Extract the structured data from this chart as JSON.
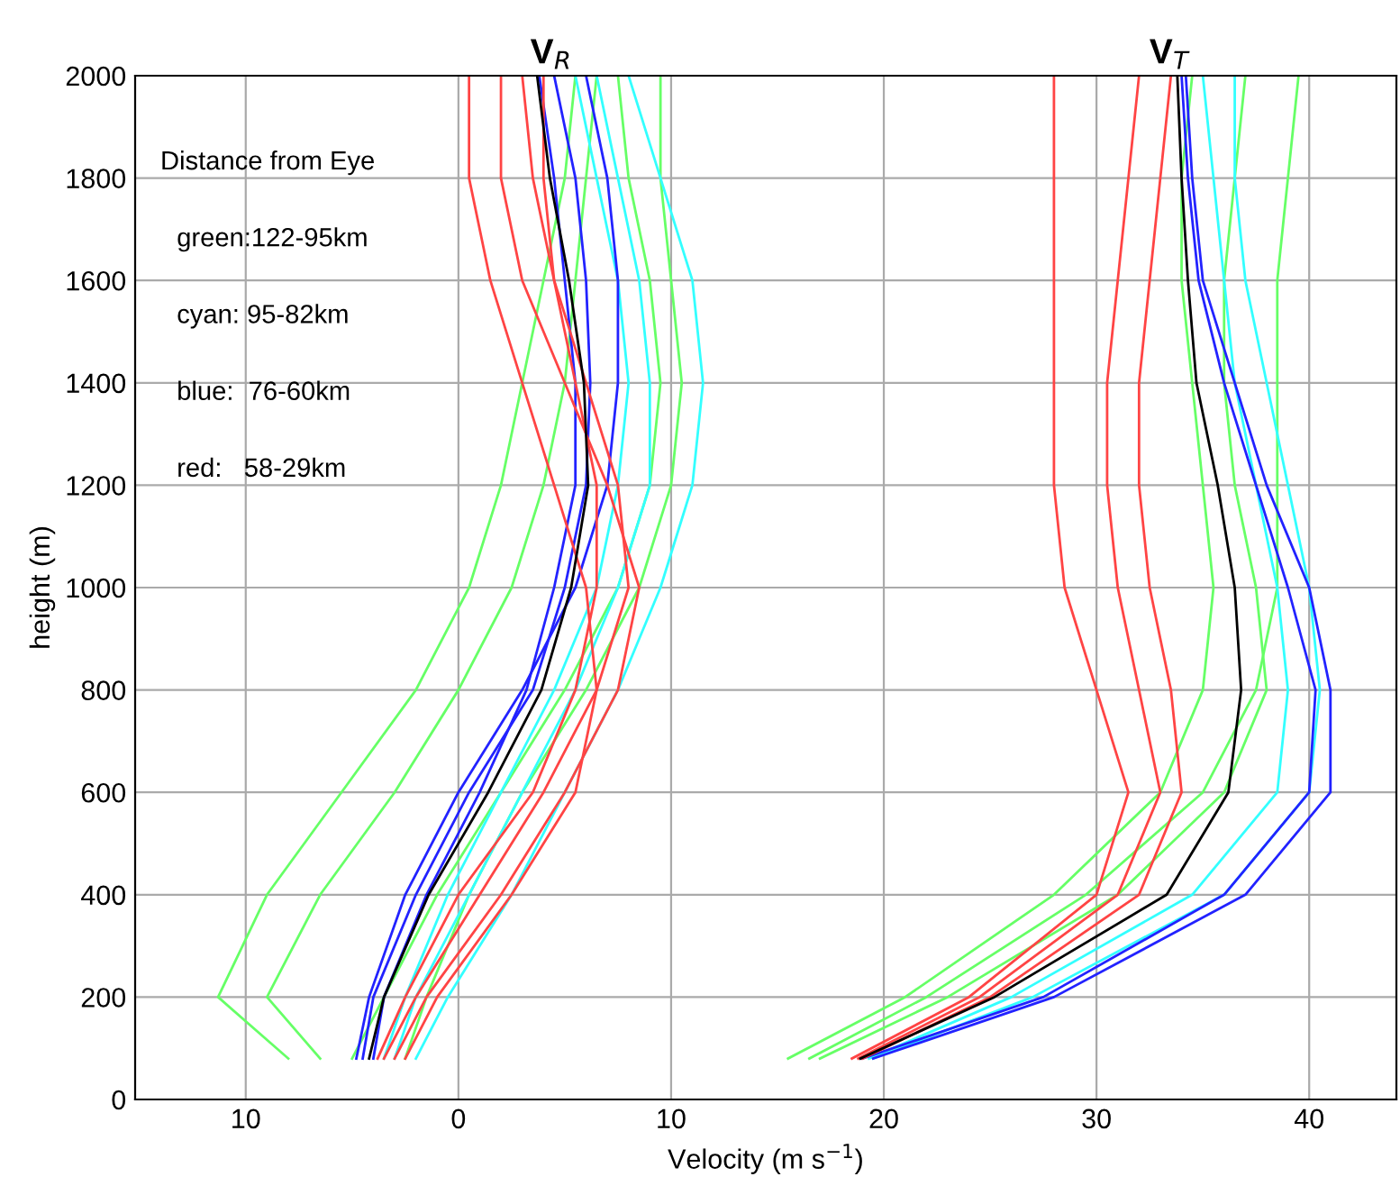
{
  "chart_data": {
    "type": "line",
    "xlabel": "Velocity (m s$^{−1}$)",
    "ylabel": "height (m)",
    "annotations": [
      "V$_{R}$",
      "V$_{T}$",
      "Distance from Eye",
      "green:122-95km",
      "cyan: 95-82km",
      "blue:  76-60km",
      "red:   58-29km"
    ],
    "xlim": [
      -15.2,
      44.1
    ],
    "ylim": [
      0,
      2000
    ],
    "xticks": [
      {
        "value": -10,
        "label": "10"
      },
      0,
      10,
      20,
      30,
      40
    ],
    "yticks": [
      0,
      200,
      400,
      600,
      800,
      1000,
      1200,
      1400,
      1600,
      1800,
      2000
    ],
    "grid": true,
    "line_style": "solid",
    "marker": "none",
    "series": [
      {
        "color": "#66ff66",
        "x": [
          -8.0,
          -11.3,
          -9.0,
          -5.5,
          -2.0,
          0.5,
          2.0,
          3.0,
          4.0,
          5.0,
          5.5
        ],
        "values": [
          80,
          200,
          400,
          600,
          800,
          1000,
          1200,
          1400,
          1600,
          1800,
          2000
        ]
      },
      {
        "color": "#66ff66",
        "x": [
          -6.5,
          -9.0,
          -6.5,
          -3.0,
          0.0,
          2.5,
          4.0,
          5.0,
          5.5,
          6.0,
          6.5
        ],
        "values": [
          80,
          200,
          400,
          600,
          800,
          1000,
          1200,
          1400,
          1600,
          1800,
          2000
        ]
      },
      {
        "color": "#66ff66",
        "x": [
          -5.0,
          -3.5,
          -1.0,
          2.0,
          5.0,
          7.5,
          9.0,
          9.5,
          9.0,
          8.0,
          7.5
        ],
        "values": [
          80,
          200,
          400,
          600,
          800,
          1000,
          1200,
          1400,
          1600,
          1800,
          2000
        ]
      },
      {
        "color": "#66ff66",
        "x": [
          -2.5,
          -1.5,
          0.5,
          3.0,
          6.0,
          8.5,
          10.0,
          10.5,
          10.0,
          9.5,
          9.5
        ],
        "values": [
          80,
          200,
          400,
          600,
          800,
          1000,
          1200,
          1400,
          1600,
          1800,
          2000
        ]
      },
      {
        "color": "#33ffff",
        "x": [
          -2.0,
          -0.5,
          2.5,
          5.0,
          7.5,
          9.5,
          11.0,
          11.5,
          11.0,
          9.5,
          8.0
        ],
        "values": [
          80,
          200,
          400,
          600,
          800,
          1000,
          1200,
          1400,
          1600,
          1800,
          2000
        ]
      },
      {
        "color": "#33ffff",
        "x": [
          -3.0,
          -2.0,
          0.5,
          3.0,
          5.5,
          7.5,
          9.0,
          9.0,
          8.5,
          7.5,
          6.5
        ],
        "values": [
          80,
          200,
          400,
          600,
          800,
          1000,
          1200,
          1400,
          1600,
          1800,
          2000
        ]
      },
      {
        "color": "#33ffff",
        "x": [
          -3.5,
          -2.5,
          -0.5,
          2.0,
          4.5,
          6.5,
          7.5,
          8.0,
          7.5,
          6.5,
          5.5
        ],
        "values": [
          80,
          200,
          400,
          600,
          800,
          1000,
          1200,
          1400,
          1600,
          1800,
          2000
        ]
      },
      {
        "color": "#2222ff",
        "x": [
          -4.8,
          -4.2,
          -2.5,
          0.0,
          3.0,
          5.5,
          7.0,
          7.5,
          7.5,
          7.0,
          6.0
        ],
        "values": [
          80,
          200,
          400,
          600,
          800,
          1000,
          1200,
          1400,
          1600,
          1800,
          2000
        ]
      },
      {
        "color": "#2222ff",
        "x": [
          -4.5,
          -4.0,
          -2.0,
          0.5,
          3.5,
          5.0,
          6.0,
          6.2,
          6.0,
          5.5,
          4.5
        ],
        "values": [
          80,
          200,
          400,
          600,
          800,
          1000,
          1200,
          1400,
          1600,
          1800,
          2000
        ]
      },
      {
        "color": "#2222ff",
        "x": [
          -4.0,
          -3.5,
          -1.5,
          1.0,
          3.2,
          4.5,
          5.5,
          5.5,
          5.0,
          4.5,
          3.8
        ],
        "values": [
          80,
          200,
          400,
          600,
          800,
          1000,
          1200,
          1400,
          1600,
          1800,
          2000
        ]
      },
      {
        "color": "#ff4444",
        "x": [
          -3.5,
          -2.0,
          1.0,
          4.0,
          6.5,
          8.0,
          7.5,
          6.0,
          4.5,
          3.5,
          3.0
        ],
        "values": [
          80,
          200,
          400,
          600,
          800,
          1000,
          1200,
          1400,
          1600,
          1800,
          2000
        ]
      },
      {
        "color": "#ff4444",
        "x": [
          -3.0,
          -1.5,
          2.0,
          5.0,
          7.5,
          8.5,
          7.0,
          5.0,
          3.0,
          2.0,
          2.0
        ],
        "values": [
          80,
          200,
          400,
          600,
          800,
          1000,
          1200,
          1400,
          1600,
          1800,
          2000
        ]
      },
      {
        "color": "#ff4444",
        "x": [
          -2.5,
          -1.0,
          2.5,
          5.5,
          6.5,
          6.0,
          4.5,
          3.0,
          1.5,
          0.5,
          0.5
        ],
        "values": [
          80,
          200,
          400,
          600,
          800,
          1000,
          1200,
          1400,
          1600,
          1800,
          2000
        ]
      },
      {
        "color": "#ff4444",
        "x": [
          -3.8,
          -2.5,
          0.0,
          3.5,
          5.5,
          6.5,
          6.5,
          5.5,
          4.5,
          4.0,
          4.0
        ],
        "values": [
          80,
          200,
          400,
          600,
          800,
          1000,
          1200,
          1400,
          1600,
          1800,
          2000
        ]
      },
      {
        "color": "#000000",
        "x": [
          -4.2,
          -3.5,
          -1.4,
          1.4,
          3.9,
          5.3,
          6.1,
          5.9,
          5.2,
          4.3,
          3.7
        ],
        "values": [
          80,
          200,
          400,
          600,
          800,
          1000,
          1200,
          1400,
          1600,
          1800,
          2000
        ]
      },
      {
        "color": "#66ff66",
        "x": [
          15.5,
          21.0,
          28.0,
          33.0,
          35.0,
          35.5,
          35.0,
          34.5,
          34.0,
          34.0,
          34.5
        ],
        "values": [
          80,
          200,
          400,
          600,
          800,
          1000,
          1200,
          1400,
          1600,
          1800,
          2000
        ]
      },
      {
        "color": "#66ff66",
        "x": [
          16.5,
          22.0,
          29.5,
          35.0,
          37.5,
          38.5,
          38.5,
          38.5,
          38.5,
          39.0,
          39.5
        ],
        "values": [
          80,
          200,
          400,
          600,
          800,
          1000,
          1200,
          1400,
          1600,
          1800,
          2000
        ]
      },
      {
        "color": "#66ff66",
        "x": [
          17.0,
          23.0,
          31.0,
          36.0,
          38.0,
          37.5,
          36.5,
          36.0,
          36.0,
          36.5,
          37.0
        ],
        "values": [
          80,
          200,
          400,
          600,
          800,
          1000,
          1200,
          1400,
          1600,
          1800,
          2000
        ]
      },
      {
        "color": "#33ffff",
        "x": [
          19.5,
          27.0,
          36.0,
          40.0,
          40.5,
          40.0,
          39.0,
          38.0,
          37.0,
          36.5,
          36.5
        ],
        "values": [
          80,
          200,
          400,
          600,
          800,
          1000,
          1200,
          1400,
          1600,
          1800,
          2000
        ]
      },
      {
        "color": "#33ffff",
        "x": [
          19.3,
          26.0,
          34.5,
          38.5,
          39.0,
          38.5,
          37.5,
          36.5,
          36.0,
          35.5,
          35.0
        ],
        "values": [
          80,
          200,
          400,
          600,
          800,
          1000,
          1200,
          1400,
          1600,
          1800,
          2000
        ]
      },
      {
        "color": "#2222ff",
        "x": [
          19.5,
          28.0,
          37.0,
          41.0,
          41.0,
          40.0,
          38.0,
          36.5,
          35.0,
          34.5,
          34.2
        ],
        "values": [
          80,
          200,
          400,
          600,
          800,
          1000,
          1200,
          1400,
          1600,
          1800,
          2000
        ]
      },
      {
        "color": "#2222ff",
        "x": [
          19.0,
          27.5,
          36.0,
          40.0,
          40.3,
          39.0,
          37.5,
          36.0,
          34.8,
          34.3,
          34.0
        ],
        "values": [
          80,
          200,
          400,
          600,
          800,
          1000,
          1200,
          1400,
          1600,
          1800,
          2000
        ]
      },
      {
        "color": "#ff4444",
        "x": [
          18.5,
          24.0,
          30.0,
          31.5,
          30.0,
          28.5,
          28.0,
          28.0,
          28.0,
          28.0,
          28.0
        ],
        "values": [
          80,
          200,
          400,
          600,
          800,
          1000,
          1200,
          1400,
          1600,
          1800,
          2000
        ]
      },
      {
        "color": "#ff4444",
        "x": [
          18.8,
          24.5,
          31.0,
          33.0,
          32.0,
          31.0,
          30.5,
          30.5,
          31.0,
          31.5,
          32.0
        ],
        "values": [
          80,
          200,
          400,
          600,
          800,
          1000,
          1200,
          1400,
          1600,
          1800,
          2000
        ]
      },
      {
        "color": "#ff4444",
        "x": [
          19.0,
          25.0,
          32.0,
          34.0,
          33.5,
          32.5,
          32.0,
          32.0,
          32.5,
          33.0,
          33.5
        ],
        "values": [
          80,
          200,
          400,
          600,
          800,
          1000,
          1200,
          1400,
          1600,
          1800,
          2000
        ]
      },
      {
        "color": "#000000",
        "x": [
          18.9,
          25.2,
          33.3,
          36.2,
          36.8,
          36.5,
          35.7,
          34.7,
          34.3,
          34.0,
          33.8
        ],
        "values": [
          80,
          200,
          400,
          600,
          800,
          1000,
          1200,
          1400,
          1600,
          1800,
          2000
        ]
      }
    ]
  }
}
